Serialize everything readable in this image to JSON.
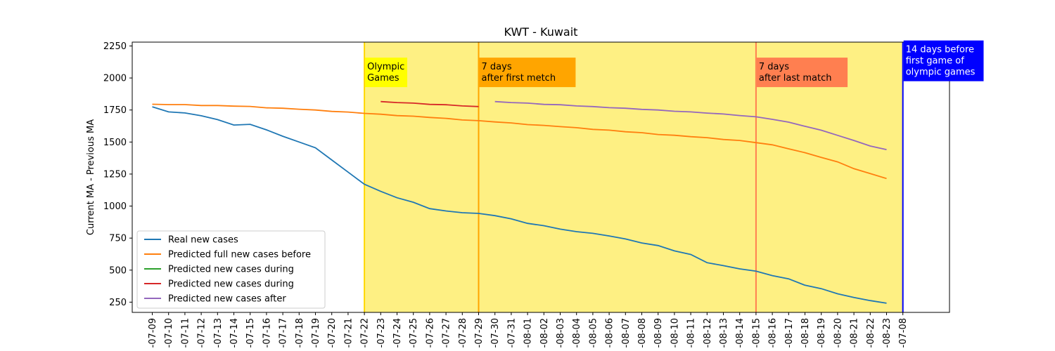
{
  "chart_data": {
    "type": "line",
    "title": "KWT - Kuwait",
    "xlabel": "",
    "ylabel": "Current MA - Previous MA",
    "ylim": [
      170,
      2280
    ],
    "yticks": [
      250,
      500,
      750,
      1000,
      1250,
      1500,
      1750,
      2000,
      2250
    ],
    "categories": [
      "07-09",
      "07-10",
      "07-11",
      "07-12",
      "07-13",
      "07-14",
      "07-15",
      "07-16",
      "07-17",
      "07-18",
      "07-19",
      "07-20",
      "07-21",
      "07-22",
      "07-23",
      "07-24",
      "07-25",
      "07-26",
      "07-27",
      "07-28",
      "07-29",
      "07-30",
      "07-31",
      "08-01",
      "08-02",
      "08-03",
      "08-04",
      "08-05",
      "08-06",
      "08-07",
      "08-08",
      "08-09",
      "08-10",
      "08-11",
      "08-12",
      "08-13",
      "08-14",
      "08-15",
      "08-16",
      "08-17",
      "08-18",
      "08-19",
      "08-20",
      "08-21",
      "08-22",
      "08-23",
      "07-08"
    ],
    "tick_labels": [
      "-07-09",
      "-07-10",
      "-07-11",
      "-07-12",
      "-07-13",
      "-07-14",
      "-07-15",
      "-07-16",
      "-07-17",
      "-07-18",
      "-07-19",
      "-07-20",
      "-07-21",
      "-07-22",
      "-07-23",
      "-07-24",
      "-07-25",
      "-07-26",
      "-07-27",
      "-07-28",
      "-07-29",
      "-07-30",
      "-07-31",
      "-08-01",
      "-08-02",
      "-08-03",
      "-08-04",
      "-08-05",
      "-08-06",
      "-08-07",
      "-08-08",
      "-08-09",
      "-08-10",
      "-08-11",
      "-08-12",
      "-08-13",
      "-08-14",
      "-08-15",
      "-08-16",
      "-08-17",
      "-08-18",
      "-08-19",
      "-08-20",
      "-08-21",
      "-08-22",
      "-08-23",
      "-07-08"
    ],
    "series": [
      {
        "name": "Real new cases",
        "color": "#1f77b4",
        "x": [
          "07-09",
          "07-10",
          "07-11",
          "07-12",
          "07-13",
          "07-14",
          "07-15",
          "07-16",
          "07-17",
          "07-18",
          "07-19",
          "07-20",
          "07-21",
          "07-22",
          "07-23",
          "07-24",
          "07-25",
          "07-26",
          "07-27",
          "07-28",
          "07-29",
          "07-30",
          "07-31",
          "08-01",
          "08-02",
          "08-03",
          "08-04",
          "08-05",
          "08-06",
          "08-07",
          "08-08",
          "08-09",
          "08-10",
          "08-11",
          "08-12",
          "08-13",
          "08-14",
          "08-15",
          "08-16",
          "08-17",
          "08-18",
          "08-19",
          "08-20",
          "08-21",
          "08-22",
          "08-23"
        ],
        "values": [
          1775,
          1735,
          1727,
          1705,
          1675,
          1633,
          1638,
          1595,
          1545,
          1500,
          1455,
          1360,
          1265,
          1170,
          1115,
          1065,
          1030,
          980,
          962,
          948,
          943,
          925,
          900,
          865,
          847,
          820,
          800,
          787,
          767,
          743,
          712,
          692,
          650,
          622,
          558,
          535,
          510,
          492,
          457,
          432,
          382,
          355,
          315,
          287,
          262,
          242
        ]
      },
      {
        "name": "Predicted full new cases before",
        "color": "#ff7f0e",
        "x": [
          "07-09",
          "07-10",
          "07-11",
          "07-12",
          "07-13",
          "07-14",
          "07-15",
          "07-16",
          "07-17",
          "07-18",
          "07-19",
          "07-20",
          "07-21",
          "07-22",
          "07-23",
          "07-24",
          "07-25",
          "07-26",
          "07-27",
          "07-28",
          "07-29",
          "07-30",
          "07-31",
          "08-01",
          "08-02",
          "08-03",
          "08-04",
          "08-05",
          "08-06",
          "08-07",
          "08-08",
          "08-09",
          "08-10",
          "08-11",
          "08-12",
          "08-13",
          "08-14",
          "08-15",
          "08-16",
          "08-17",
          "08-18",
          "08-19",
          "08-20",
          "08-21",
          "08-22",
          "08-23"
        ],
        "values": [
          1795,
          1792,
          1792,
          1785,
          1785,
          1780,
          1778,
          1767,
          1764,
          1756,
          1750,
          1739,
          1734,
          1724,
          1717,
          1706,
          1702,
          1692,
          1685,
          1672,
          1667,
          1657,
          1649,
          1636,
          1630,
          1620,
          1612,
          1599,
          1593,
          1580,
          1573,
          1559,
          1553,
          1542,
          1534,
          1520,
          1512,
          1495,
          1478,
          1447,
          1417,
          1380,
          1345,
          1292,
          1254,
          1215
        ]
      },
      {
        "name": "Predicted new cases during",
        "color": "#2ca02c",
        "x": [],
        "values": []
      },
      {
        "name": "Predicted new cases during",
        "color": "#d62728",
        "x": [
          "07-23",
          "07-24",
          "07-25",
          "07-26",
          "07-27",
          "07-28",
          "07-29"
        ],
        "values": [
          1816,
          1808,
          1804,
          1794,
          1791,
          1782,
          1777
        ]
      },
      {
        "name": "Predicted new cases after",
        "color": "#9467bd",
        "x": [
          "07-30",
          "07-31",
          "08-01",
          "08-02",
          "08-03",
          "08-04",
          "08-05",
          "08-06",
          "08-07",
          "08-08",
          "08-09",
          "08-10",
          "08-11",
          "08-12",
          "08-13",
          "08-14",
          "08-15",
          "08-16",
          "08-17",
          "08-18",
          "08-19",
          "08-20",
          "08-21",
          "08-22",
          "08-23"
        ],
        "values": [
          1816,
          1808,
          1804,
          1794,
          1791,
          1782,
          1777,
          1768,
          1764,
          1755,
          1750,
          1740,
          1735,
          1726,
          1719,
          1707,
          1697,
          1677,
          1655,
          1623,
          1592,
          1552,
          1512,
          1469,
          1441
        ]
      }
    ],
    "shaded_region": {
      "from": "07-22",
      "to": "07-29",
      "color": "#fef083"
    },
    "shaded_region_after": {
      "from": "07-29",
      "to": "07-08",
      "color": "#fef083"
    },
    "vlines": [
      {
        "at": "07-22",
        "color": "#ffd700"
      },
      {
        "at": "07-29",
        "color": "#ffa500"
      },
      {
        "at": "08-15",
        "color": "#ff7f50"
      },
      {
        "at": "07-08",
        "color": "#0000ff"
      }
    ],
    "annotations": [
      {
        "at": "07-22",
        "y": 2000,
        "lines": [
          "Olympic",
          "Games"
        ],
        "bg": "#ffff00",
        "fg": "#000000"
      },
      {
        "at": "07-29",
        "y": 2000,
        "lines": [
          "7 days",
          "after first metch"
        ],
        "bg": "#ffa500",
        "fg": "#000000"
      },
      {
        "at": "08-15",
        "y": 2000,
        "lines": [
          "7 days",
          "after last match"
        ],
        "bg": "#ff7f50",
        "fg": "#000000"
      },
      {
        "at": "07-08",
        "y": 2090,
        "lines": [
          "14 days before",
          "first game of",
          "olympic games"
        ],
        "bg": "#0000ff",
        "fg": "#ffffff"
      }
    ],
    "legend_placement": "lower-left",
    "grid": false
  }
}
